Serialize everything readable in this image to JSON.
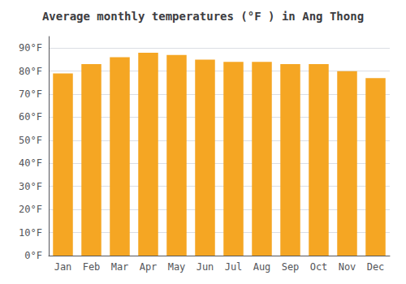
{
  "chart_data": {
    "type": "bar",
    "title": "Average monthly temperatures (°F ) in Ang Thong",
    "categories": [
      "Jan",
      "Feb",
      "Mar",
      "Apr",
      "May",
      "Jun",
      "Jul",
      "Aug",
      "Sep",
      "Oct",
      "Nov",
      "Dec"
    ],
    "values": [
      79,
      83,
      86,
      88,
      87,
      85,
      84,
      84,
      83,
      83,
      80,
      77
    ],
    "color": "#F5A623",
    "ylim": [
      0,
      95
    ],
    "yticks": [
      {
        "value": 0,
        "label": "0°F"
      },
      {
        "value": 10,
        "label": "10°F"
      },
      {
        "value": 20,
        "label": "20°F"
      },
      {
        "value": 30,
        "label": "30°F"
      },
      {
        "value": 40,
        "label": "40°F"
      },
      {
        "value": 50,
        "label": "50°F"
      },
      {
        "value": 60,
        "label": "60°F"
      },
      {
        "value": 70,
        "label": "70°F"
      },
      {
        "value": 80,
        "label": "80°F"
      },
      {
        "value": 90,
        "label": "90°F"
      }
    ],
    "grid": true
  }
}
